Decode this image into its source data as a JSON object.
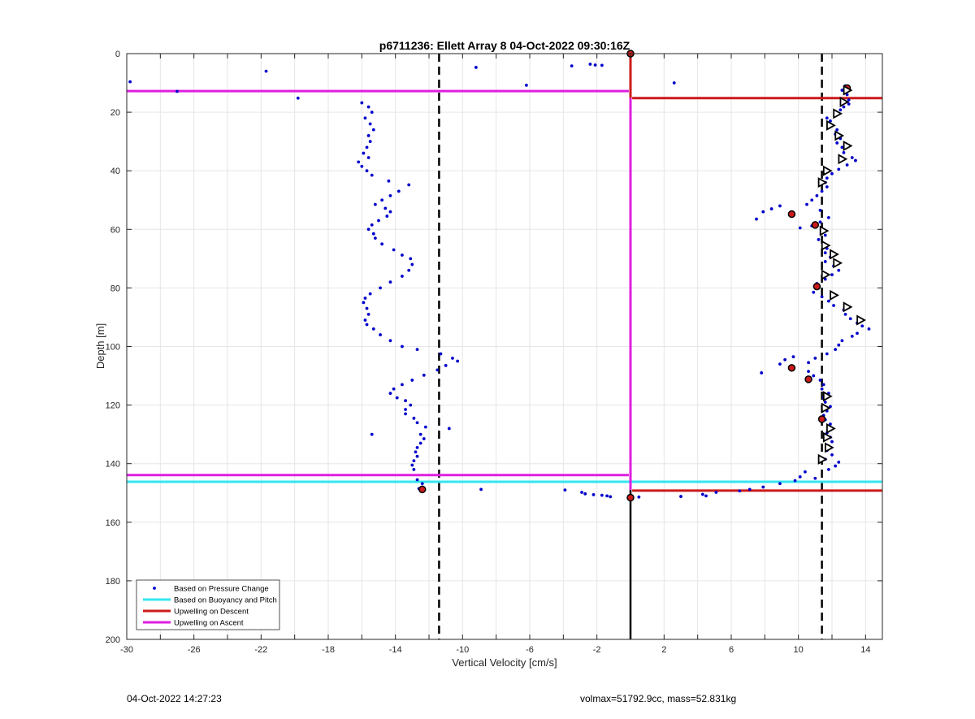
{
  "chart_data": {
    "type": "scatter",
    "title": "p6711236: Ellett Array 8 04-Oct-2022 09:30:16Z",
    "xlabel": "Vertical Velocity [cm/s]",
    "ylabel": "Depth [m]",
    "xlim": [
      -30,
      15
    ],
    "ylim": [
      0,
      200
    ],
    "y_reversed": true,
    "grid": true,
    "xticks": [
      -30,
      -26,
      -22,
      -18,
      -14,
      -10,
      -6,
      -2,
      2,
      6,
      10,
      14
    ],
    "yticks": [
      0,
      20,
      40,
      60,
      80,
      100,
      120,
      140,
      160,
      180,
      200
    ],
    "legend": {
      "placement": "bottom-left",
      "entries": [
        {
          "label": "Based on Pressure Change",
          "color": "#0000cc",
          "style": "dot"
        },
        {
          "label": "Based on Buoyancy and Pitch",
          "color": "#33e6f0",
          "style": "line"
        },
        {
          "label": "Upwelling on Descent",
          "color": "#cc1a1a",
          "style": "line"
        },
        {
          "label": "Upwelling on Ascent",
          "color": "#e01ee0",
          "style": "line"
        }
      ]
    },
    "vertical_lines": [
      {
        "x": 0,
        "style": "solid",
        "color": "#000000"
      },
      {
        "x": -11.4,
        "style": "dashed",
        "color": "#000000"
      },
      {
        "x": 11.4,
        "style": "dashed",
        "color": "#000000"
      }
    ],
    "series": [
      {
        "name": "Based on Pressure Change",
        "color": "#0000cc",
        "points": [
          [
            -29.8,
            9.6
          ],
          [
            -27.0,
            12.9
          ],
          [
            -21.7,
            6.0
          ],
          [
            -19.8,
            15.2
          ],
          [
            -9.2,
            4.7
          ],
          [
            -6.2,
            10.8
          ],
          [
            -3.5,
            4.2
          ],
          [
            -2.4,
            3.6
          ],
          [
            -2.1,
            3.9
          ],
          [
            -1.7,
            4.0
          ],
          [
            2.6,
            10.0
          ],
          [
            -16.0,
            16.8
          ],
          [
            -15.6,
            18.2
          ],
          [
            -15.4,
            20.0
          ],
          [
            -15.8,
            22.0
          ],
          [
            -15.5,
            24.0
          ],
          [
            -15.3,
            26.0
          ],
          [
            -15.6,
            28.0
          ],
          [
            -15.5,
            30.0
          ],
          [
            -15.7,
            32.0
          ],
          [
            -15.9,
            34.0
          ],
          [
            -15.6,
            35.5
          ],
          [
            -16.2,
            37.0
          ],
          [
            -16.0,
            38.5
          ],
          [
            -15.7,
            40.0
          ],
          [
            -15.4,
            41.5
          ],
          [
            -14.4,
            43.5
          ],
          [
            -13.2,
            44.8
          ],
          [
            -13.8,
            47.0
          ],
          [
            -14.3,
            48.5
          ],
          [
            -14.8,
            50.0
          ],
          [
            -15.2,
            51.5
          ],
          [
            -14.6,
            52.8
          ],
          [
            -14.3,
            54.0
          ],
          [
            -14.5,
            55.5
          ],
          [
            -15.0,
            57.0
          ],
          [
            -15.4,
            58.5
          ],
          [
            -15.6,
            60.0
          ],
          [
            -15.3,
            61.5
          ],
          [
            -15.2,
            63.0
          ],
          [
            -14.8,
            65.0
          ],
          [
            -14.1,
            67.0
          ],
          [
            -13.6,
            68.8
          ],
          [
            -13.1,
            70.0
          ],
          [
            -13.0,
            72.0
          ],
          [
            -13.2,
            74.0
          ],
          [
            -13.6,
            76.0
          ],
          [
            -14.3,
            78.0
          ],
          [
            -14.9,
            80.0
          ],
          [
            -15.5,
            82.0
          ],
          [
            -15.8,
            83.5
          ],
          [
            -15.9,
            85.0
          ],
          [
            -15.7,
            87.0
          ],
          [
            -15.6,
            89.0
          ],
          [
            -15.8,
            91.0
          ],
          [
            -15.7,
            92.5
          ],
          [
            -15.3,
            94.0
          ],
          [
            -14.9,
            96.0
          ],
          [
            -14.3,
            98.0
          ],
          [
            -13.6,
            100.0
          ],
          [
            -12.7,
            101.0
          ],
          [
            -11.3,
            102.5
          ],
          [
            -10.6,
            104.0
          ],
          [
            -10.3,
            105.0
          ],
          [
            -11.0,
            106.5
          ],
          [
            -11.5,
            108.0
          ],
          [
            -12.3,
            109.8
          ],
          [
            -13.0,
            111.5
          ],
          [
            -13.6,
            113.0
          ],
          [
            -14.1,
            114.5
          ],
          [
            -14.3,
            116.0
          ],
          [
            -13.9,
            117.5
          ],
          [
            -13.4,
            118.5
          ],
          [
            -13.1,
            120.0
          ],
          [
            -13.4,
            121.5
          ],
          [
            -13.4,
            123.0
          ],
          [
            -12.9,
            124.5
          ],
          [
            -12.7,
            126.0
          ],
          [
            -12.2,
            127.5
          ],
          [
            -10.8,
            128.0
          ],
          [
            -12.5,
            130.0
          ],
          [
            -12.3,
            131.5
          ],
          [
            -12.5,
            133.0
          ],
          [
            -12.7,
            134.5
          ],
          [
            -12.8,
            136.0
          ],
          [
            -12.7,
            137.5
          ],
          [
            -12.9,
            139.0
          ],
          [
            -13.0,
            140.5
          ],
          [
            -12.9,
            142.0
          ],
          [
            -15.4,
            130.0
          ],
          [
            -12.7,
            145.5
          ],
          [
            -12.4,
            146.8
          ],
          [
            -12.6,
            148.5
          ],
          [
            -8.9,
            148.8
          ],
          [
            -3.9,
            149.0
          ],
          [
            -2.9,
            149.8
          ],
          [
            -2.7,
            150.3
          ],
          [
            -2.2,
            150.6
          ],
          [
            -1.7,
            150.8
          ],
          [
            -1.4,
            151.0
          ],
          [
            -1.2,
            151.3
          ],
          [
            0.0,
            151.7
          ],
          [
            0.5,
            151.4
          ],
          [
            3.0,
            151.2
          ],
          [
            4.3,
            150.5
          ],
          [
            4.5,
            151.0
          ],
          [
            5.1,
            149.8
          ],
          [
            6.5,
            149.3
          ],
          [
            7.1,
            148.8
          ],
          [
            7.9,
            148.0
          ],
          [
            8.9,
            146.8
          ],
          [
            9.8,
            145.8
          ],
          [
            10.1,
            144.5
          ],
          [
            10.4,
            142.8
          ],
          [
            11.0,
            145.0
          ],
          [
            12.8,
            11.0
          ],
          [
            12.6,
            12.5
          ],
          [
            12.9,
            14.0
          ],
          [
            13.0,
            15.8
          ],
          [
            13.0,
            17.2
          ],
          [
            12.7,
            18.2
          ],
          [
            12.5,
            19.2
          ],
          [
            12.2,
            20.5
          ],
          [
            11.7,
            22.0
          ],
          [
            11.9,
            23.0
          ],
          [
            12.0,
            24.5
          ],
          [
            12.3,
            26.0
          ],
          [
            12.2,
            27.5
          ],
          [
            12.5,
            29.0
          ],
          [
            12.3,
            30.5
          ],
          [
            12.6,
            32.0
          ],
          [
            12.7,
            33.8
          ],
          [
            13.2,
            35.5
          ],
          [
            13.4,
            36.5
          ],
          [
            12.9,
            38.0
          ],
          [
            12.4,
            39.5
          ],
          [
            12.0,
            41.0
          ],
          [
            11.7,
            42.5
          ],
          [
            11.6,
            44.0
          ],
          [
            11.7,
            45.5
          ],
          [
            11.4,
            47.0
          ],
          [
            11.1,
            48.5
          ],
          [
            10.8,
            50.0
          ],
          [
            10.5,
            51.5
          ],
          [
            8.9,
            52.0
          ],
          [
            8.4,
            53.0
          ],
          [
            7.9,
            54.0
          ],
          [
            7.5,
            56.5
          ],
          [
            11.3,
            53.5
          ],
          [
            11.8,
            56.0
          ],
          [
            11.3,
            57.5
          ],
          [
            10.8,
            58.8
          ],
          [
            10.1,
            59.5
          ],
          [
            11.5,
            60.5
          ],
          [
            11.6,
            62.0
          ],
          [
            11.2,
            63.5
          ],
          [
            11.5,
            65.0
          ],
          [
            11.7,
            66.5
          ],
          [
            11.6,
            68.0
          ],
          [
            11.9,
            69.5
          ],
          [
            11.6,
            71.0
          ],
          [
            12.1,
            72.5
          ],
          [
            12.4,
            74.0
          ],
          [
            12.0,
            75.5
          ],
          [
            11.6,
            77.0
          ],
          [
            11.1,
            78.5
          ],
          [
            11.2,
            80.0
          ],
          [
            10.9,
            81.5
          ],
          [
            11.4,
            83.0
          ],
          [
            11.8,
            84.5
          ],
          [
            12.1,
            86.0
          ],
          [
            12.7,
            87.5
          ],
          [
            12.8,
            89.0
          ],
          [
            13.1,
            90.5
          ],
          [
            13.5,
            92.0
          ],
          [
            13.8,
            93.0
          ],
          [
            14.2,
            94.0
          ],
          [
            13.5,
            95.5
          ],
          [
            13.2,
            96.5
          ],
          [
            12.6,
            98.0
          ],
          [
            12.4,
            99.5
          ],
          [
            12.2,
            101.0
          ],
          [
            11.7,
            102.5
          ],
          [
            11.0,
            104.0
          ],
          [
            10.6,
            105.5
          ],
          [
            9.7,
            103.5
          ],
          [
            9.2,
            104.5
          ],
          [
            8.9,
            106.0
          ],
          [
            7.8,
            109.0
          ],
          [
            10.6,
            108.5
          ],
          [
            10.9,
            110.0
          ],
          [
            11.3,
            111.5
          ],
          [
            11.5,
            113.0
          ],
          [
            11.4,
            114.5
          ],
          [
            11.8,
            116.0
          ],
          [
            11.5,
            117.5
          ],
          [
            11.6,
            119.0
          ],
          [
            11.9,
            120.5
          ],
          [
            11.7,
            122.0
          ],
          [
            11.5,
            123.5
          ],
          [
            11.6,
            125.0
          ],
          [
            11.9,
            126.5
          ],
          [
            12.0,
            128.0
          ],
          [
            11.7,
            129.5
          ],
          [
            11.9,
            131.0
          ],
          [
            12.0,
            132.5
          ],
          [
            11.8,
            134.0
          ],
          [
            11.7,
            135.5
          ],
          [
            12.0,
            137.0
          ],
          [
            11.6,
            138.5
          ],
          [
            12.4,
            139.5
          ],
          [
            12.2,
            140.8
          ],
          [
            11.8,
            142.0
          ]
        ]
      },
      {
        "name": "Upwelling on Descent",
        "color": "#cc1a1a",
        "lines": [
          {
            "x0": 0.1,
            "x1": 15,
            "y": 15.2
          },
          {
            "x0": 0.1,
            "x1": 15,
            "y": 149.2
          }
        ],
        "connector": [
          [
            0.0,
            0.0
          ],
          [
            0.0,
            15.2
          ]
        ],
        "markers": [
          [
            0.0,
            0.0
          ],
          [
            12.9,
            11.8
          ],
          [
            9.6,
            54.8
          ],
          [
            11.0,
            58.5
          ],
          [
            11.1,
            79.5
          ],
          [
            9.6,
            107.3
          ],
          [
            10.6,
            111.2
          ],
          [
            11.4,
            124.8
          ],
          [
            -12.4,
            148.8
          ],
          [
            0.0,
            151.6
          ]
        ]
      },
      {
        "name": "Upwelling on Ascent",
        "color": "#e01ee0",
        "lines": [
          {
            "x0": -30,
            "x1": -0.1,
            "y": 12.8
          },
          {
            "x0": -30,
            "x1": -0.1,
            "y": 143.9
          }
        ],
        "connector": [
          [
            0.0,
            8.5
          ],
          [
            0.0,
            12.8
          ],
          [
            0.0,
            143.9
          ],
          [
            0.0,
            149.0
          ]
        ]
      },
      {
        "name": "Based on Buoyancy and Pitch",
        "color": "#33e6f0",
        "lines": [
          {
            "x0": -30,
            "x1": 15,
            "y": 146.2
          }
        ]
      },
      {
        "name": "triangle-markers",
        "color": "#000000",
        "points": [
          [
            12.9,
            12.5
          ],
          [
            12.7,
            16.5
          ],
          [
            12.3,
            20.5
          ],
          [
            11.9,
            24.5
          ],
          [
            12.4,
            28.0
          ],
          [
            12.9,
            31.5
          ],
          [
            12.6,
            36.0
          ],
          [
            11.7,
            40.0
          ],
          [
            11.4,
            44.0
          ],
          [
            11.5,
            60.5
          ],
          [
            11.6,
            65.5
          ],
          [
            12.1,
            68.5
          ],
          [
            12.3,
            71.5
          ],
          [
            11.6,
            75.5
          ],
          [
            12.1,
            82.5
          ],
          [
            12.9,
            86.5
          ],
          [
            13.7,
            91.0
          ],
          [
            11.7,
            117.0
          ],
          [
            11.6,
            121.0
          ],
          [
            11.9,
            128.0
          ],
          [
            11.7,
            131.0
          ],
          [
            11.8,
            134.5
          ],
          [
            11.4,
            138.5
          ]
        ]
      }
    ]
  },
  "footer": {
    "left": "04-Oct-2022 14:27:23",
    "right": "volmax=51792.9cc, mass=52.831kg"
  }
}
